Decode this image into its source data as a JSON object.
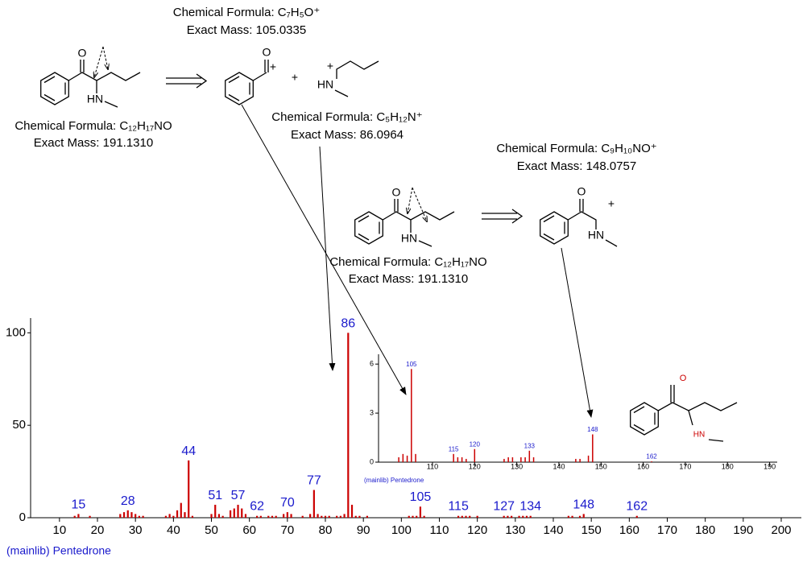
{
  "chart_data": [
    {
      "type": "bar",
      "x": [
        14,
        15,
        18,
        26,
        27,
        28,
        29,
        30,
        31,
        32,
        38,
        39,
        40,
        41,
        42,
        43,
        44,
        45,
        50,
        51,
        52,
        53,
        55,
        56,
        57,
        58,
        59,
        62,
        63,
        65,
        66,
        67,
        69,
        70,
        71,
        74,
        76,
        77,
        78,
        79,
        80,
        81,
        83,
        84,
        85,
        86,
        87,
        88,
        89,
        91,
        102,
        103,
        104,
        105,
        106,
        115,
        116,
        117,
        118,
        120,
        127,
        128,
        129,
        131,
        132,
        133,
        134,
        144,
        145,
        147,
        148,
        162
      ],
      "values": [
        1,
        2,
        1,
        2,
        3,
        4,
        3,
        2,
        1,
        1,
        1,
        2,
        1,
        4,
        8,
        3,
        31,
        1,
        2,
        7,
        2,
        1,
        4,
        5,
        7,
        5,
        2,
        1,
        1,
        1,
        1,
        1,
        2,
        3,
        2,
        1,
        2,
        15,
        2,
        1,
        1,
        1,
        1,
        1,
        2,
        100,
        7,
        1,
        1,
        1,
        1,
        1,
        1,
        6,
        1,
        1,
        1,
        1,
        1,
        1,
        1,
        1,
        1,
        1,
        1,
        1,
        1,
        1,
        1,
        1,
        2,
        1
      ],
      "color": "#cc0000",
      "label_color": "#1a1acc",
      "peak_labels": [
        15,
        28,
        44,
        51,
        57,
        62,
        70,
        77,
        86,
        105,
        115,
        127,
        134,
        148,
        162
      ],
      "xlim": [
        2.4,
        205.3
      ],
      "ylim": [
        0,
        108
      ],
      "xticks": [
        10,
        20,
        30,
        40,
        50,
        60,
        70,
        80,
        90,
        100,
        110,
        120,
        130,
        140,
        150,
        160,
        170,
        180,
        190,
        200
      ],
      "yticks": [
        0,
        50,
        100
      ],
      "x_label": "(mainlib) Pentedrone"
    },
    {
      "type": "bar",
      "x": [
        102,
        103,
        104,
        105,
        106,
        115,
        116,
        117,
        118,
        120,
        127,
        128,
        129,
        131,
        132,
        133,
        134,
        144,
        145,
        147,
        148,
        162
      ],
      "values": [
        0.3,
        0.5,
        0.4,
        5.7,
        0.5,
        0.5,
        0.3,
        0.3,
        0.2,
        0.8,
        0.2,
        0.3,
        0.3,
        0.3,
        0.3,
        0.7,
        0.3,
        0.2,
        0.2,
        0.4,
        1.7,
        0.05
      ],
      "color": "#cc0000",
      "label_color": "#1a1acc",
      "peak_labels": [
        105,
        115,
        120,
        133,
        148,
        162
      ],
      "xlim": [
        97.2,
        191.8
      ],
      "ylim": [
        0,
        6.6
      ],
      "xticks": [
        110,
        120,
        130,
        140,
        150,
        160,
        170,
        180,
        190
      ],
      "yticks": [
        0,
        3,
        6
      ],
      "x_label": "(mainlib) Pentedrone"
    }
  ],
  "scheme": {
    "reactant_1": {
      "formula": "Chemical Formula: C₁₂H₁₇NO",
      "mass": "Exact Mass: 191.1310",
      "atoms": [
        "O",
        "HN"
      ]
    },
    "fragment_105": {
      "formula": "Chemical Formula: C₇H₅O⁺",
      "mass": "Exact Mass: 105.0335",
      "atoms": [
        "O",
        "+"
      ]
    },
    "plus": "+",
    "fragment_86": {
      "formula": "Chemical Formula: C₅H₁₂N⁺",
      "mass": "Exact Mass: 86.0964",
      "atoms": [
        "+",
        "HN"
      ]
    },
    "reactant_2": {
      "formula": "Chemical Formula: C₁₂H₁₇NO",
      "mass": "Exact Mass: 191.1310",
      "atoms": [
        "O",
        "HN"
      ]
    },
    "fragment_148": {
      "formula": "Chemical Formula: C₉H₁₀NO⁺",
      "mass": "Exact Mass: 148.0757",
      "atoms": [
        "O",
        "+",
        "HN"
      ]
    },
    "inset_structure": {
      "atoms": [
        "O",
        "HN"
      ]
    }
  }
}
